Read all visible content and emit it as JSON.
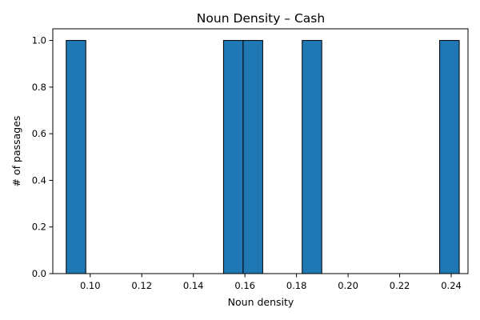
{
  "chart_data": {
    "type": "bar",
    "title": "Noun Density – Cash",
    "xlabel": "Noun density",
    "ylabel": "# of passages",
    "xlim": [
      0.0855,
      0.2465
    ],
    "ylim": [
      0.0,
      1.05
    ],
    "xticks": [
      0.1,
      0.12,
      0.14,
      0.16,
      0.18,
      0.2,
      0.22,
      0.24
    ],
    "xtick_labels": [
      "0.10",
      "0.12",
      "0.14",
      "0.16",
      "0.18",
      "0.20",
      "0.22",
      "0.24"
    ],
    "yticks": [
      0.0,
      0.2,
      0.4,
      0.6,
      0.8,
      1.0
    ],
    "ytick_labels": [
      "0.0",
      "0.2",
      "0.4",
      "0.6",
      "0.8",
      "1.0"
    ],
    "bar_color": "#1f77b4",
    "edge_color": "#000000",
    "bins": [
      {
        "start": 0.0907,
        "end": 0.0983,
        "count": 1
      },
      {
        "start": 0.1517,
        "end": 0.1593,
        "count": 1
      },
      {
        "start": 0.1593,
        "end": 0.1669,
        "count": 1
      },
      {
        "start": 0.1822,
        "end": 0.1898,
        "count": 1
      },
      {
        "start": 0.2355,
        "end": 0.2431,
        "count": 1
      }
    ],
    "grid": false,
    "legend": "none"
  }
}
